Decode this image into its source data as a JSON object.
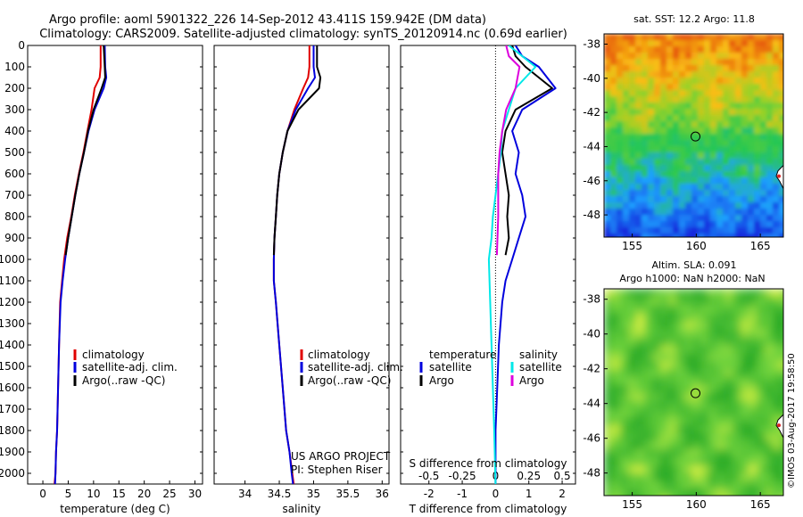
{
  "figure": {
    "title_line1": "Argo profile: aoml 5901322_226 14-Sep-2012 43.411S 159.942E (DM data)",
    "title_line2": "Climatology: CARS2009. Satellite-adjusted climatology: synTS_20120914.nc (0.69d earlier)",
    "watermark": "©IMOS 03-Aug-2017 19:58:50",
    "project_line1": "US ARGO PROJECT",
    "project_line2": "PI: Stephen Riser"
  },
  "colors": {
    "climatology": "#e00000",
    "satellite": "#0000dd",
    "argo": "#000000",
    "sal_satellite": "#00e8e8",
    "sal_argo": "#dd00dd",
    "marker": "#000000"
  },
  "chart_data": [
    {
      "id": "temperature",
      "type": "line",
      "xlabel": "temperature (deg C)",
      "xticks": [
        "0",
        "5",
        "10",
        "15",
        "20",
        "25",
        "30"
      ],
      "xlim": [
        -3,
        31.5
      ],
      "ylim": [
        2050,
        0
      ],
      "yticks": [
        0,
        100,
        200,
        300,
        400,
        500,
        600,
        700,
        800,
        900,
        1000,
        1100,
        1200,
        1300,
        1400,
        1500,
        1600,
        1700,
        1800,
        1900,
        2000
      ],
      "legend": [
        "climatology",
        "satellite-adj. clim.",
        "Argo(..raw -QC)"
      ],
      "series": [
        {
          "name": "climatology",
          "color": "#e00000",
          "x": [
            11.4,
            11.4,
            11.2,
            10.2,
            9.6,
            8.8,
            8.0,
            7.1,
            6.3,
            5.6,
            4.8,
            4.2,
            3.8,
            3.4,
            3.2,
            3.0,
            2.8,
            2.6,
            2.5,
            2.3
          ],
          "y": [
            0,
            100,
            150,
            200,
            300,
            400,
            500,
            600,
            700,
            800,
            900,
            1000,
            1100,
            1200,
            1400,
            1600,
            1800,
            1900,
            2000,
            2050
          ]
        },
        {
          "name": "satellite-adj. clim.",
          "color": "#0000dd",
          "x": [
            12.2,
            12.3,
            12.5,
            12.0,
            10.2,
            9.0,
            8.1,
            7.2,
            6.4,
            5.7,
            5.0,
            4.4,
            3.9,
            3.5,
            3.2,
            3.0,
            2.8,
            2.6,
            2.5,
            2.4
          ],
          "y": [
            0,
            100,
            150,
            200,
            300,
            400,
            500,
            600,
            700,
            800,
            900,
            1000,
            1100,
            1200,
            1400,
            1600,
            1800,
            1900,
            2000,
            2050
          ]
        },
        {
          "name": "Argo(..raw -QC)",
          "color": "#000000",
          "x": [
            12.0,
            12.2,
            12.3,
            11.6,
            10.0,
            8.9,
            8.1,
            7.2,
            6.4,
            5.7,
            5.0,
            4.5
          ],
          "y": [
            0,
            100,
            150,
            200,
            300,
            400,
            500,
            600,
            700,
            800,
            900,
            980
          ]
        }
      ]
    },
    {
      "id": "salinity",
      "type": "line",
      "xlabel": "salinity",
      "xticks": [
        "34",
        "34.5",
        "35",
        "35.5",
        "36"
      ],
      "xlim": [
        33.55,
        36.1
      ],
      "ylim": [
        2050,
        0
      ],
      "legend": [
        "climatology",
        "satellite-adj. clim.",
        "Argo(..raw -QC)"
      ],
      "series": [
        {
          "name": "climatology",
          "color": "#e00000",
          "x": [
            34.94,
            34.94,
            34.92,
            34.85,
            34.72,
            34.62,
            34.55,
            34.5,
            34.47,
            34.45,
            34.43,
            34.42,
            34.42,
            34.45,
            34.5,
            34.55,
            34.6,
            34.65,
            34.69,
            34.71
          ],
          "y": [
            0,
            100,
            150,
            200,
            300,
            400,
            500,
            600,
            700,
            800,
            900,
            1000,
            1100,
            1200,
            1400,
            1600,
            1800,
            1900,
            2000,
            2050
          ]
        },
        {
          "name": "satellite-adj. clim.",
          "color": "#0000dd",
          "x": [
            35.0,
            35.0,
            35.02,
            34.92,
            34.74,
            34.62,
            34.55,
            34.5,
            34.47,
            34.45,
            34.43,
            34.42,
            34.42,
            34.45,
            34.5,
            34.55,
            34.6,
            34.65,
            34.68,
            34.7
          ],
          "y": [
            0,
            100,
            150,
            200,
            300,
            400,
            500,
            600,
            700,
            800,
            900,
            1000,
            1100,
            1200,
            1400,
            1600,
            1800,
            1900,
            2000,
            2050
          ]
        },
        {
          "name": "Argo(..raw -QC)",
          "color": "#000000",
          "x": [
            35.05,
            35.05,
            35.1,
            35.08,
            34.78,
            34.62,
            34.55,
            34.5,
            34.47,
            34.45,
            34.43,
            34.42
          ],
          "y": [
            0,
            100,
            150,
            200,
            300,
            400,
            500,
            600,
            700,
            800,
            900,
            980
          ]
        }
      ]
    },
    {
      "id": "difference",
      "type": "line",
      "xlabel": "T difference from climatology",
      "xlabel_top": "S difference from climatology",
      "xticks": [
        "-2",
        "-1",
        "0",
        "1",
        "2"
      ],
      "xticks_top": [
        "-0.5",
        "-0.25",
        "0",
        "0.25",
        "0.5"
      ],
      "xlim": [
        -2.85,
        2.4
      ],
      "ylim": [
        2050,
        0
      ],
      "legend_groups": [
        {
          "title": "temperature",
          "entries": [
            "satellite",
            "Argo"
          ]
        },
        {
          "title": "salinity",
          "entries": [
            "satellite",
            "Argo"
          ]
        }
      ],
      "series": [
        {
          "name": "temperature satellite",
          "color": "#0000dd",
          "x": [
            0.6,
            0.8,
            1.3,
            1.8,
            0.8,
            0.5,
            0.7,
            0.6,
            0.8,
            0.9,
            0.7,
            0.5,
            0.3,
            0.2,
            0.1,
            0.05,
            0.0,
            0.0,
            0.0
          ],
          "y": [
            0,
            50,
            100,
            200,
            300,
            400,
            500,
            600,
            700,
            800,
            900,
            1000,
            1100,
            1200,
            1400,
            1600,
            1800,
            2000,
            2050
          ]
        },
        {
          "name": "temperature Argo",
          "color": "#000000",
          "x": [
            0.5,
            0.6,
            0.9,
            1.7,
            0.6,
            0.3,
            0.2,
            0.3,
            0.4,
            0.35,
            0.4,
            0.3
          ],
          "y": [
            0,
            50,
            100,
            200,
            300,
            400,
            500,
            600,
            700,
            800,
            900,
            980
          ]
        },
        {
          "name": "salinity satellite",
          "color": "#00e8e8",
          "x": [
            0.1,
            0.2,
            0.3,
            0.15,
            0.1,
            0.05,
            0.04,
            0.02,
            0.0,
            -0.02,
            -0.03,
            -0.05,
            -0.04,
            -0.03,
            -0.02,
            -0.01,
            0.0
          ],
          "y": [
            0,
            50,
            100,
            200,
            300,
            400,
            500,
            600,
            700,
            800,
            900,
            1000,
            1200,
            1400,
            1600,
            1800,
            2050
          ]
        },
        {
          "name": "salinity Argo",
          "color": "#dd00dd",
          "x": [
            0.08,
            0.1,
            0.18,
            0.15,
            0.08,
            0.05,
            0.03,
            0.02,
            0.02,
            0.01
          ],
          "y": [
            0,
            50,
            100,
            200,
            300,
            400,
            500,
            600,
            800,
            980
          ]
        }
      ]
    },
    {
      "id": "sst_map",
      "type": "heatmap",
      "title": "sat. SST: 12.2 Argo: 11.8",
      "xticks": [
        "155",
        "160",
        "165"
      ],
      "yticks": [
        "-38",
        "-40",
        "-42",
        "-44",
        "-46",
        "-48"
      ],
      "xlim": [
        152.8,
        166.8
      ],
      "ylim": [
        -49.3,
        -37.4
      ],
      "marker": {
        "lon": 159.94,
        "lat": -43.41
      }
    },
    {
      "id": "sla_map",
      "type": "heatmap",
      "title_line1": "Altim. SLA: 0.091",
      "title_line2": "Argo h1000: NaN h2000: NaN",
      "xticks": [
        "155",
        "160",
        "165"
      ],
      "yticks": [
        "-38",
        "-40",
        "-42",
        "-44",
        "-46",
        "-48"
      ],
      "xlim": [
        152.8,
        166.8
      ],
      "ylim": [
        -49.3,
        -37.4
      ],
      "marker": {
        "lon": 159.94,
        "lat": -43.41
      }
    }
  ]
}
